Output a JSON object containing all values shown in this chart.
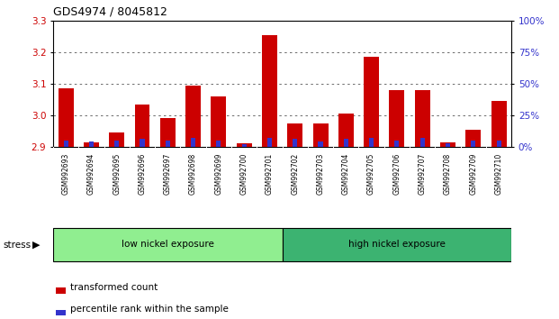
{
  "title": "GDS4974 / 8045812",
  "categories": [
    "GSM992693",
    "GSM992694",
    "GSM992695",
    "GSM992696",
    "GSM992697",
    "GSM992698",
    "GSM992699",
    "GSM992700",
    "GSM992701",
    "GSM992702",
    "GSM992703",
    "GSM992704",
    "GSM992705",
    "GSM992706",
    "GSM992707",
    "GSM992708",
    "GSM992709",
    "GSM992710"
  ],
  "red_values": [
    3.085,
    2.915,
    2.945,
    3.035,
    2.99,
    3.095,
    3.06,
    2.91,
    3.255,
    2.975,
    2.975,
    3.005,
    3.185,
    3.08,
    3.08,
    2.915,
    2.955,
    3.045
  ],
  "blue_percentile": [
    5,
    4,
    5,
    6,
    5,
    7,
    5,
    2,
    7,
    6,
    4,
    6,
    7,
    5,
    7,
    3,
    5,
    5
  ],
  "baseline": 2.9,
  "ylim_left": [
    2.9,
    3.3
  ],
  "ylim_right": [
    0,
    100
  ],
  "yticks_left": [
    2.9,
    3.0,
    3.1,
    3.2,
    3.3
  ],
  "yticks_right": [
    0,
    25,
    50,
    75,
    100
  ],
  "ytick_labels_right": [
    "0%",
    "25%",
    "50%",
    "75%",
    "100%"
  ],
  "group_low": {
    "label": "low nickel exposure",
    "start": 0,
    "end": 8
  },
  "group_high": {
    "label": "high nickel exposure",
    "start": 9,
    "end": 17
  },
  "stress_label": "stress",
  "legend_red": "transformed count",
  "legend_blue": "percentile rank within the sample",
  "bar_color_red": "#cc0000",
  "bar_color_blue": "#3333cc",
  "group_low_color": "#90EE90",
  "group_high_color": "#3CB371",
  "bg_color": "#ffffff",
  "plot_bg_color": "#ffffff",
  "tick_label_bg": "#cccccc",
  "dotted_line_color": "#555555",
  "bar_width": 0.6,
  "blue_bar_width": 0.18
}
